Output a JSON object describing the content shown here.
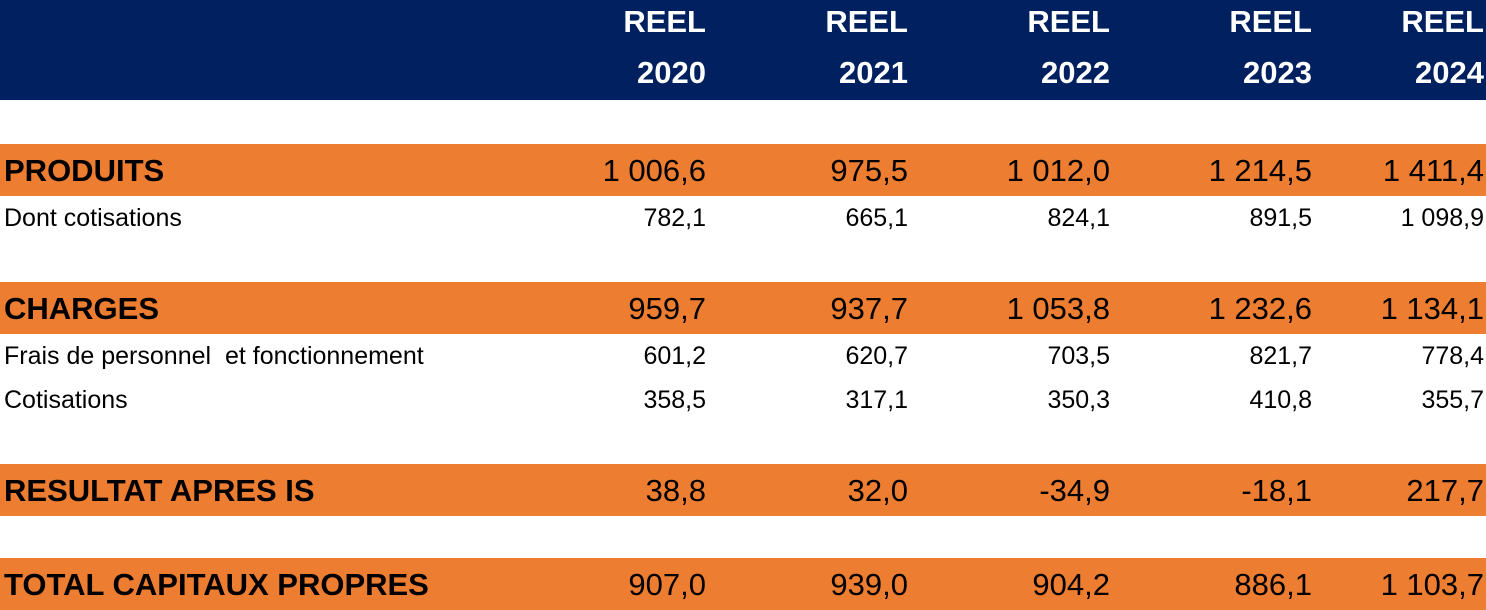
{
  "header": {
    "columns": [
      {
        "line1": "REEL",
        "line2": "2020"
      },
      {
        "line1": "REEL",
        "line2": "2021"
      },
      {
        "line1": "REEL",
        "line2": "2022"
      },
      {
        "line1": "REEL",
        "line2": "2023"
      },
      {
        "line1": "REEL",
        "line2": "2024"
      }
    ]
  },
  "rows": [
    {
      "label": "PRODUITS",
      "values": [
        "1 006,6",
        "975,5",
        "1 012,0",
        "1 214,5",
        "1 411,4"
      ]
    },
    {
      "label": "Dont cotisations",
      "values": [
        "782,1",
        "665,1",
        "824,1",
        "891,5",
        "1 098,9"
      ]
    },
    {
      "label": "CHARGES",
      "values": [
        "959,7",
        "937,7",
        "1 053,8",
        "1 232,6",
        "1 134,1"
      ]
    },
    {
      "label": "Frais de personnel  et fonctionnement",
      "values": [
        "601,2",
        "620,7",
        "703,5",
        "821,7",
        "778,4"
      ]
    },
    {
      "label": "Cotisations",
      "values": [
        "358,5",
        "317,1",
        "350,3",
        "410,8",
        "355,7"
      ]
    },
    {
      "label": "RESULTAT APRES IS",
      "values": [
        "38,8",
        "32,0",
        "-34,9",
        "-18,1",
        "217,7"
      ]
    },
    {
      "label": "TOTAL CAPITAUX PROPRES",
      "values": [
        "907,0",
        "939,0",
        "904,2",
        "886,1",
        "1 103,7"
      ]
    }
  ],
  "colors": {
    "header_bg": "#002060",
    "highlight_bg": "#ED7D31",
    "header_text": "#ffffff"
  }
}
